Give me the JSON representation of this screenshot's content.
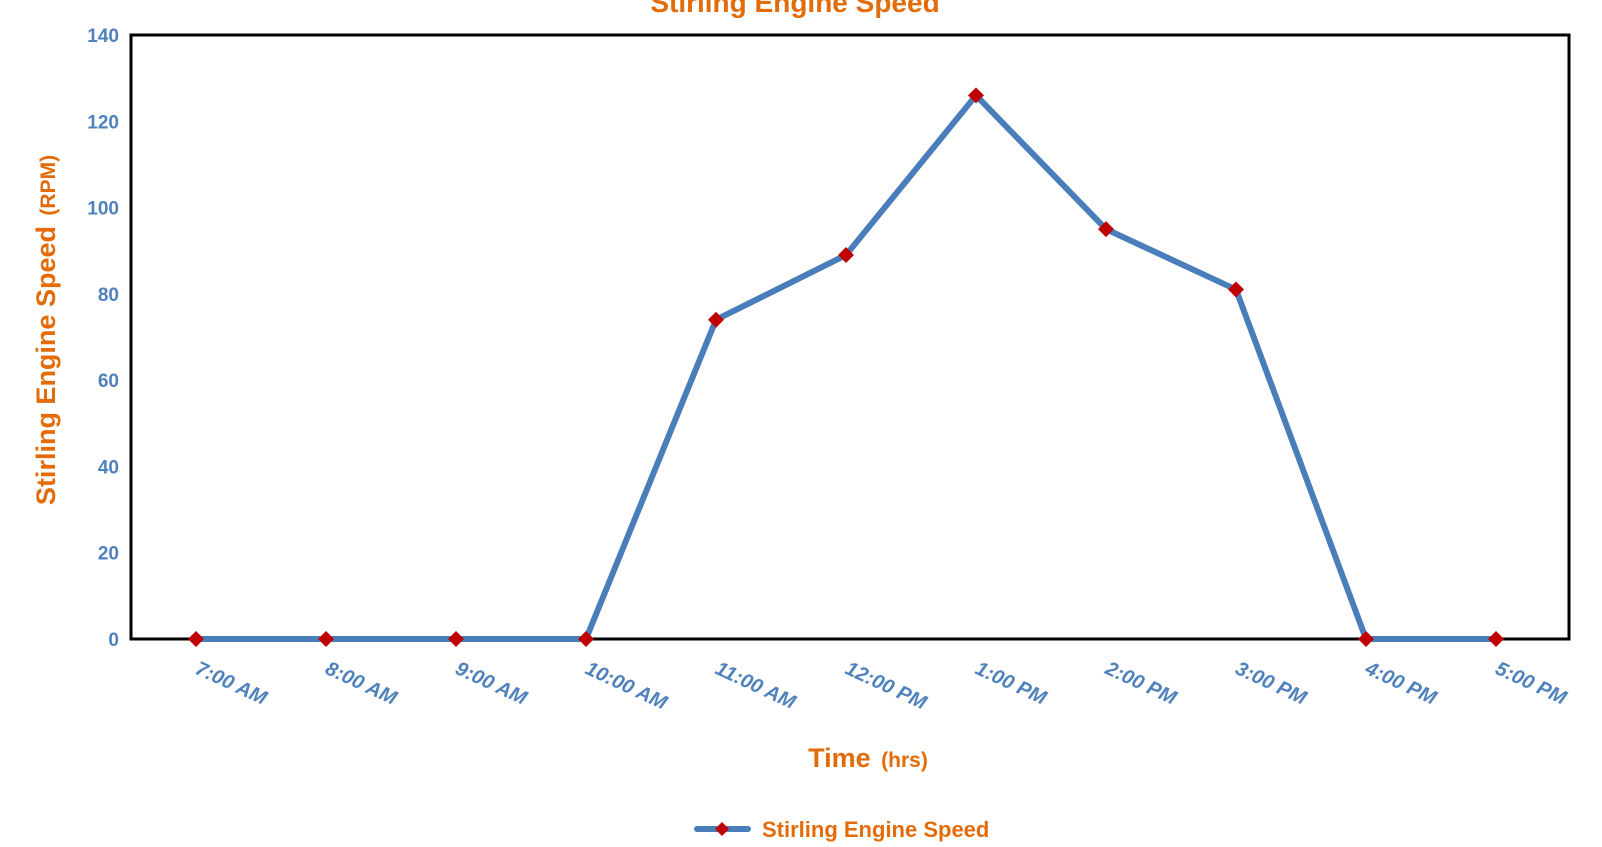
{
  "chart_data": {
    "type": "line",
    "title": "Stirling Engine Speed",
    "xlabel": {
      "main": "Time",
      "unit": "(hrs)"
    },
    "ylabel": {
      "main": "Stirling Engine Speed",
      "unit": "(RPM)"
    },
    "categories": [
      "7:00 AM",
      "8:00 AM",
      "9:00 AM",
      "10:00 AM",
      "11:00 AM",
      "12:00 PM",
      "1:00 PM",
      "2:00 PM",
      "3:00 PM",
      "4:00 PM",
      "5:00 PM"
    ],
    "series": [
      {
        "name": "Stirling Engine Speed",
        "values": [
          0,
          0,
          0,
          0,
          74,
          89,
          126,
          95,
          81,
          0,
          0
        ],
        "line_color": "#4A7EBB",
        "marker_color": "#C00000",
        "marker": "diamond"
      }
    ],
    "ylim": [
      0,
      140
    ],
    "yticks": [
      0,
      20,
      40,
      60,
      80,
      100,
      120,
      140
    ],
    "grid": false,
    "legend_position": "bottom",
    "colors": {
      "title": "#E36C09",
      "axis_label": "#E36C09",
      "tick_label": "#4F81BD",
      "legend_text": "#E36C09",
      "frame": "#000000"
    }
  }
}
